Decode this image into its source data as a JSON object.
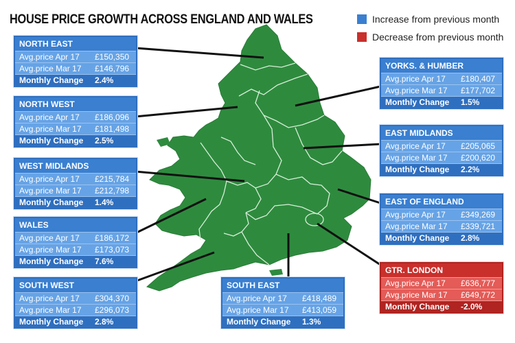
{
  "title": "HOUSE PRICE GROWTH ACROSS ENGLAND AND WALES",
  "legend": {
    "increase": {
      "label": "Increase from previous month",
      "color": "#3a7fd0"
    },
    "decrease": {
      "label": "Decrease from previous month",
      "color": "#c9302c"
    }
  },
  "row_labels": {
    "apr": "Avg.price Apr 17",
    "mar": "Avg.price Mar 17",
    "change": "Monthly Change"
  },
  "map_color": "#2e8b3e",
  "regions": [
    {
      "name": "NORTH EAST",
      "apr": "£150,350",
      "mar": "£146,796",
      "change": "2.4%",
      "status": "increase"
    },
    {
      "name": "NORTH WEST",
      "apr": "£186,096",
      "mar": "£181,498",
      "change": "2.5%",
      "status": "increase"
    },
    {
      "name": "WEST MIDLANDS",
      "apr": "£215,784",
      "mar": "£212,798",
      "change": "1.4%",
      "status": "increase"
    },
    {
      "name": "WALES",
      "apr": "£186,172",
      "mar": "£173,073",
      "change": "7.6%",
      "status": "increase"
    },
    {
      "name": "SOUTH WEST",
      "apr": "£304,370",
      "mar": "£296,073",
      "change": "2.8%",
      "status": "increase"
    },
    {
      "name": "SOUTH EAST",
      "apr": "£418,489",
      "mar": "£413,059",
      "change": "1.3%",
      "status": "increase"
    },
    {
      "name": "YORKS. & HUMBER",
      "apr": "£180,407",
      "mar": "£177,702",
      "change": "1.5%",
      "status": "increase"
    },
    {
      "name": "EAST MIDLANDS",
      "apr": "£205,065",
      "mar": "£200,620",
      "change": "2.2%",
      "status": "increase"
    },
    {
      "name": "EAST OF ENGLAND",
      "apr": "£349,269",
      "mar": "£339,721",
      "change": "2.8%",
      "status": "increase"
    },
    {
      "name": "GTR. LONDON",
      "apr": "£636,777",
      "mar": "£649,772",
      "change": "-2.0%",
      "status": "decrease"
    }
  ]
}
